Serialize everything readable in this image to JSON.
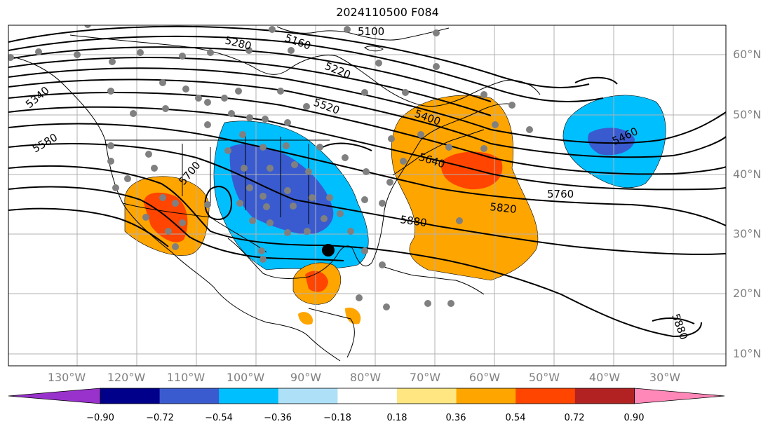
{
  "title": "2024110500 F084",
  "map": {
    "lon_labels": [
      "130°W",
      "120°W",
      "110°W",
      "100°W",
      "90°W",
      "80°W",
      "70°W",
      "60°W",
      "50°W",
      "40°W",
      "30°W"
    ],
    "lat_labels": [
      "60°N",
      "50°N",
      "40°N",
      "30°N",
      "20°N",
      "10°N"
    ],
    "contour_labels": [
      "5100",
      "5280",
      "5160",
      "5220",
      "5340",
      "5580",
      "5520",
      "5400",
      "5640",
      "5700",
      "5460",
      "5760",
      "5820",
      "5880",
      "5880"
    ]
  },
  "colorbar": {
    "ticks": [
      "−0.90",
      "−0.72",
      "−0.54",
      "−0.36",
      "−0.18",
      "0.18",
      "0.36",
      "0.54",
      "0.72",
      "0.90"
    ],
    "colors": [
      "#9932cc",
      "#00008b",
      "#3a5bd0",
      "#00bfff",
      "#aee0f8",
      "#ffffff",
      "#ffe680",
      "#ffa500",
      "#ff4500",
      "#b22222",
      "#ff88b8"
    ]
  },
  "colors": {
    "orange": "#ffa500",
    "redorange": "#ff4500",
    "lightblue": "#00bfff",
    "royalblue": "#3a5bd0",
    "station": "#808080"
  }
}
